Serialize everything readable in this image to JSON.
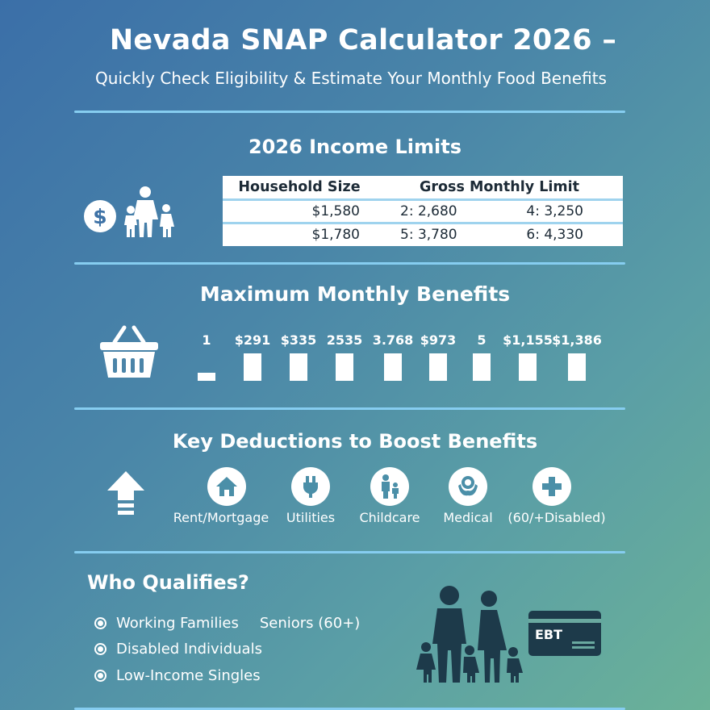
{
  "header": {
    "title": "Nevada SNAP Calculator 2026 –",
    "subtitle": "Quickly Check Eligibility & Estimate Your Monthly Food Benefits"
  },
  "income": {
    "title": "2026 Income Limits",
    "headers": [
      "Household Size",
      "Gross Monthly Limit"
    ],
    "rows": [
      [
        "$1,580",
        "2: 2,680",
        "4: 3,250"
      ],
      [
        "$1,780",
        "5: 3,780",
        "6: 4,330"
      ]
    ],
    "icons": [
      "dollar-icon",
      "family-icon"
    ]
  },
  "benefits": {
    "title": "Maximum Monthly Benefits",
    "icon": "basket-icon",
    "labels": [
      "1",
      "$291",
      "$335",
      "2535",
      "3.768",
      "$973",
      "5",
      "$1,155",
      "$1,386"
    ]
  },
  "deductions": {
    "title": "Key Deductions to Boost Benefits",
    "icon": "up-arrow-icon",
    "items": [
      {
        "label": "Rent/Mortgage",
        "icon": "house-icon"
      },
      {
        "label": "Utilities",
        "icon": "plug-icon"
      },
      {
        "label": "Childcare",
        "icon": "parent-child-icon"
      },
      {
        "label": "Medical",
        "icon": "caregiver-icon"
      },
      {
        "label": "(60/+Disabled)",
        "icon": "medical-cross-icon"
      }
    ]
  },
  "qualifies": {
    "title": "Who Qualifies?",
    "items": [
      "Working Families",
      "Seniors (60+)",
      "Disabled Individuals",
      "Low-Income Singles"
    ],
    "card_label": "EBT"
  },
  "colors": {
    "divider": "#86cdf0",
    "dark_icon": "#1d3a4a",
    "gradient_start": "#3b6fa8",
    "gradient_end": "#6bb298"
  }
}
